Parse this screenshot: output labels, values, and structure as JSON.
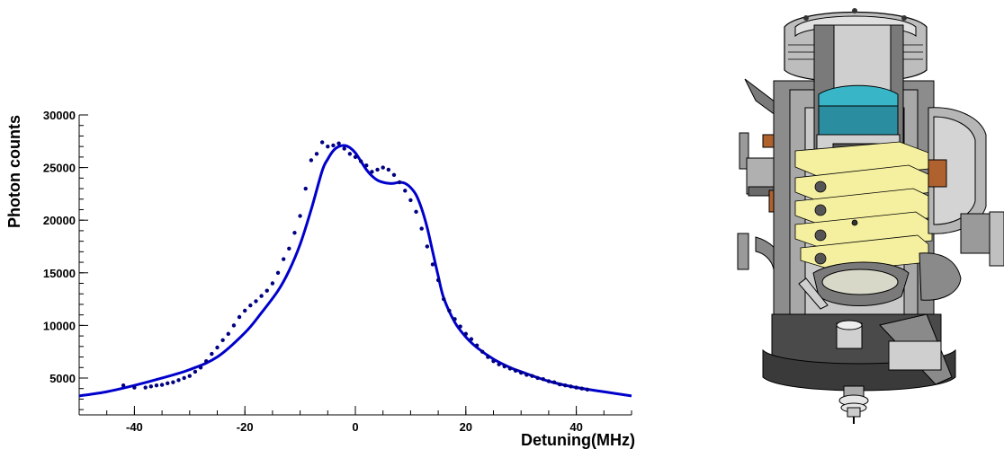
{
  "chart_data": {
    "type": "scatter",
    "xlabel": "Detuning(MHz)",
    "ylabel": "Photon counts",
    "xlim": [
      -50,
      50
    ],
    "ylim": [
      1500,
      30000
    ],
    "x_ticks": [
      -40,
      -20,
      0,
      20,
      40
    ],
    "y_ticks": [
      5000,
      10000,
      15000,
      20000,
      25000,
      30000
    ],
    "colors": {
      "data_points": "#000080",
      "fit_curve": "#0000cc",
      "axis": "#000000"
    },
    "grid": false,
    "legend": "none",
    "series": [
      {
        "kind": "points",
        "x": [
          -42,
          -40,
          -38,
          -37,
          -36,
          -35,
          -34,
          -33,
          -32,
          -31,
          -30,
          -29,
          -28,
          -27,
          -26,
          -25,
          -24,
          -23,
          -22,
          -21,
          -20,
          -19,
          -18,
          -17,
          -16,
          -15,
          -14,
          -13,
          -12,
          -11,
          -10,
          -9,
          -8,
          -7,
          -6,
          -5,
          -4,
          -3,
          -2,
          -1,
          0,
          1,
          2,
          3,
          4,
          5,
          6,
          7,
          8,
          9,
          10,
          11,
          12,
          13,
          14,
          15,
          16,
          17,
          18,
          19,
          20,
          21,
          22,
          23,
          24,
          25,
          26,
          27,
          28,
          29,
          30,
          31,
          32,
          33,
          34,
          35,
          36,
          37,
          38,
          39,
          40,
          41,
          42
        ],
        "y": [
          4300,
          4100,
          4100,
          4200,
          4300,
          4350,
          4500,
          4600,
          4800,
          5000,
          5200,
          5600,
          6000,
          6600,
          7300,
          7900,
          8600,
          9200,
          10000,
          10800,
          11400,
          11900,
          12300,
          12800,
          13300,
          14000,
          15000,
          16300,
          17300,
          18800,
          20400,
          23000,
          25700,
          26300,
          27400,
          27000,
          27100,
          27300,
          26800,
          26300,
          26000,
          25600,
          25200,
          24600,
          24800,
          25000,
          24800,
          24300,
          23600,
          22800,
          21900,
          20800,
          19200,
          17500,
          15800,
          14300,
          12500,
          11400,
          10600,
          9900,
          9200,
          8700,
          8100,
          7500,
          7000,
          6600,
          6300,
          6100,
          5900,
          5700,
          5500,
          5300,
          5200,
          5000,
          4900,
          4700,
          4600,
          4400,
          4300,
          4200,
          4100,
          4000,
          3900
        ]
      },
      {
        "kind": "fit",
        "x": [
          -50,
          -45,
          -40,
          -35,
          -30,
          -25,
          -20,
          -17,
          -14,
          -12,
          -10,
          -8,
          -6,
          -5,
          -4,
          -3,
          -2,
          -1,
          0,
          1,
          2,
          3,
          4,
          5,
          6,
          7,
          8,
          9,
          10,
          11,
          12,
          13,
          14,
          15,
          16,
          18,
          20,
          22,
          25,
          28,
          30,
          35,
          40,
          45,
          50
        ],
        "y": [
          3300,
          3700,
          4300,
          5000,
          5800,
          7000,
          9300,
          11200,
          13300,
          15200,
          17700,
          21000,
          24700,
          25800,
          26600,
          27000,
          27100,
          26900,
          26400,
          25600,
          24800,
          24200,
          23800,
          23600,
          23500,
          23500,
          23600,
          23500,
          23100,
          22400,
          21100,
          19300,
          17000,
          14700,
          12600,
          10300,
          8900,
          7900,
          6800,
          6000,
          5600,
          4700,
          4100,
          3700,
          3300
        ]
      }
    ]
  },
  "illustration": {
    "subject": "vacuum-chamber-cutaway",
    "colors": {
      "steel": "#8c8c8c",
      "steel_dark": "#4a4a4a",
      "steel_light": "#d5d5d5",
      "electrode": "#f5f0a0",
      "window": "#38b6c8",
      "copper": "#b0622e"
    }
  }
}
